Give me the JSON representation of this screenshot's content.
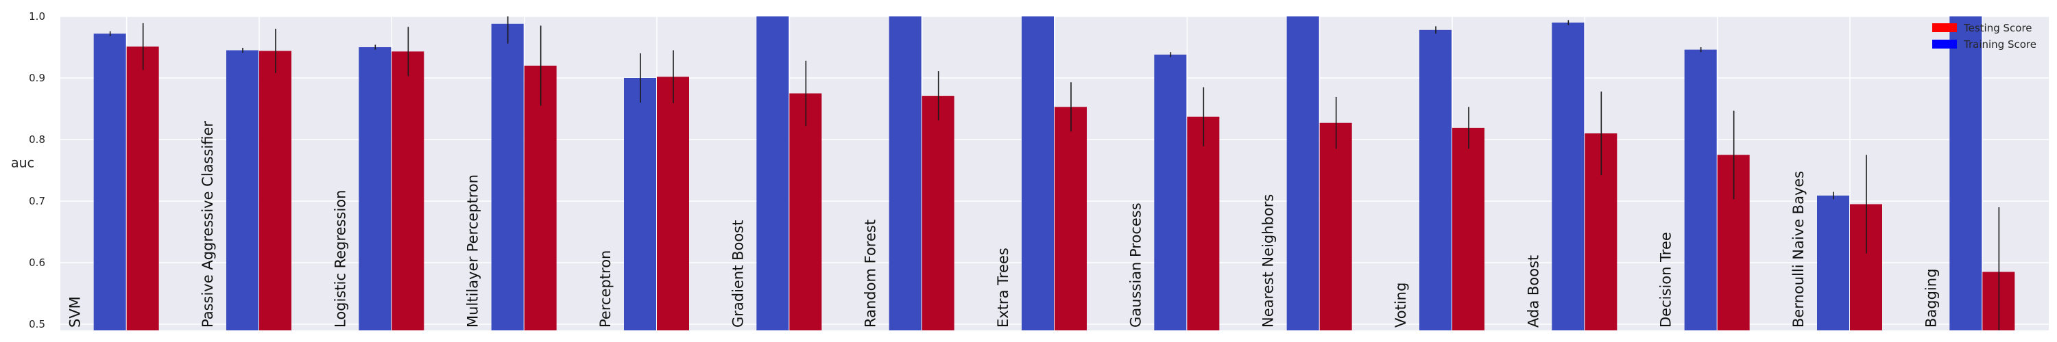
{
  "chart_data": {
    "type": "bar",
    "title": "",
    "xlabel": "",
    "ylabel": "auc",
    "ylim": [
      0.49,
      1.0
    ],
    "yticks": [
      0.5,
      0.6,
      0.7,
      0.8,
      0.9,
      1.0
    ],
    "ytick_labels": [
      "0.5",
      "0.6",
      "0.7",
      "0.8",
      "0.9",
      "1.0"
    ],
    "grid": true,
    "legend_position": "top-right",
    "categories": [
      "SVM",
      "Passive Aggressive Classifier",
      "Logistic Regression",
      "Multilayer Perceptron",
      "Perceptron",
      "Gradient Boost",
      "Random Forest",
      "Extra Trees",
      "Gaussian Process",
      "Nearest Neighbors",
      "Voting",
      "Ada Boost",
      "Decision Tree",
      "Bernoulli Naive Bayes",
      "Bagging"
    ],
    "series": [
      {
        "name": "Training Score",
        "color": "#3b4cc0",
        "values": [
          0.972,
          0.945,
          0.95,
          0.988,
          0.9,
          1.0,
          1.0,
          1.0,
          0.938,
          1.0,
          0.978,
          0.99,
          0.946,
          0.709,
          1.0
        ],
        "errors": [
          0.004,
          0.004,
          0.004,
          0.032,
          0.04,
          0.0,
          0.0,
          0.0,
          0.004,
          0.0,
          0.006,
          0.004,
          0.004,
          0.006,
          0.0
        ]
      },
      {
        "name": "Testing Score",
        "color": "#b40426",
        "values": [
          0.951,
          0.944,
          0.943,
          0.92,
          0.902,
          0.875,
          0.871,
          0.853,
          0.837,
          0.827,
          0.819,
          0.81,
          0.775,
          0.695,
          0.585
        ],
        "errors": [
          0.038,
          0.036,
          0.04,
          0.065,
          0.043,
          0.053,
          0.04,
          0.04,
          0.048,
          0.042,
          0.034,
          0.068,
          0.072,
          0.08,
          0.105
        ]
      }
    ],
    "legend": [
      {
        "label": "Testing Score",
        "color": "#ff0000"
      },
      {
        "label": "Training Score",
        "color": "#0000ff"
      }
    ]
  }
}
